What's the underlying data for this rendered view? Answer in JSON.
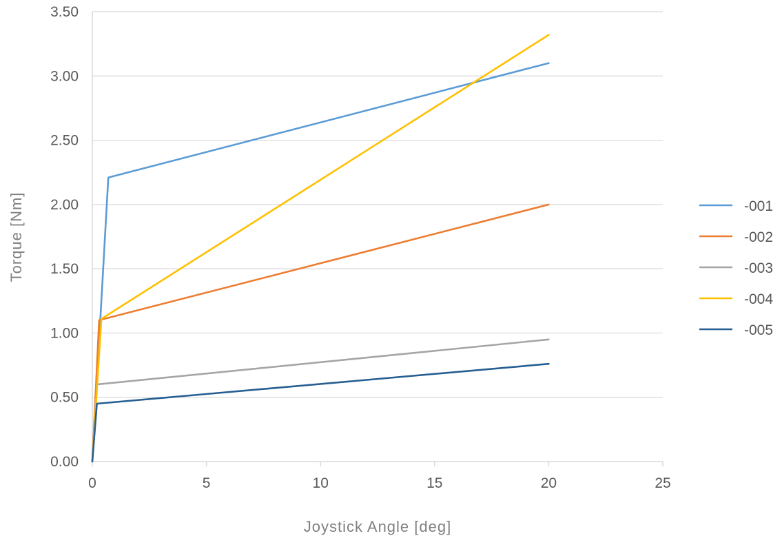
{
  "chart_data": {
    "type": "line",
    "title": "",
    "xlabel": "Joystick Angle [deg]",
    "ylabel": "Torque [Nm]",
    "xlim": [
      0,
      25
    ],
    "ylim": [
      0,
      3.5
    ],
    "x_ticks": [
      "0",
      "5",
      "10",
      "15",
      "20",
      "25"
    ],
    "y_ticks": [
      "0.00",
      "0.50",
      "1.00",
      "1.50",
      "2.00",
      "2.50",
      "3.00",
      "3.50"
    ],
    "grid": "horizontal",
    "legend_position": "right",
    "series": [
      {
        "name": "-001",
        "color": "#5b9bd5",
        "points": [
          [
            0,
            0
          ],
          [
            0.7,
            2.21
          ],
          [
            20,
            3.1
          ]
        ]
      },
      {
        "name": "-002",
        "color": "#ed7d31",
        "points": [
          [
            0,
            0
          ],
          [
            0.3,
            1.1
          ],
          [
            20,
            2.0
          ]
        ]
      },
      {
        "name": "-003",
        "color": "#a5a5a5",
        "points": [
          [
            0,
            0
          ],
          [
            0.2,
            0.6
          ],
          [
            20,
            0.95
          ]
        ]
      },
      {
        "name": "-004",
        "color": "#ffc000",
        "points": [
          [
            0,
            0
          ],
          [
            0.4,
            1.11
          ],
          [
            20,
            3.32
          ]
        ]
      },
      {
        "name": "-005",
        "color": "#255e91",
        "points": [
          [
            0,
            0
          ],
          [
            0.2,
            0.45
          ],
          [
            20,
            0.76
          ]
        ]
      }
    ]
  }
}
